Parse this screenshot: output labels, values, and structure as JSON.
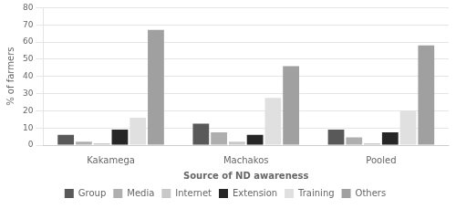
{
  "chart_data": {
    "type": "bar",
    "categories": [
      "Kakamega",
      "Machakos",
      "Pooled"
    ],
    "series": [
      {
        "name": "Group",
        "color": "#595959",
        "values": [
          6,
          12.5,
          9
        ]
      },
      {
        "name": "Media",
        "color": "#afafaf",
        "values": [
          2,
          7.5,
          4.5
        ]
      },
      {
        "name": "Internet",
        "color": "#c8c8c8",
        "values": [
          1,
          2,
          1
        ]
      },
      {
        "name": "Extension",
        "color": "#262626",
        "values": [
          9,
          6,
          7.5
        ]
      },
      {
        "name": "Training",
        "color": "#e0e0e0",
        "values": [
          16,
          27.5,
          20
        ]
      },
      {
        "name": "Others",
        "color": "#a0a0a0",
        "values": [
          67,
          46,
          58
        ]
      }
    ],
    "xlabel": "Source of ND awareness",
    "ylabel": "% of farmers",
    "ylim": [
      0,
      80
    ],
    "yticks": [
      0,
      10,
      20,
      30,
      40,
      50,
      60,
      70,
      80
    ],
    "grid": true,
    "legend": "bottom"
  }
}
